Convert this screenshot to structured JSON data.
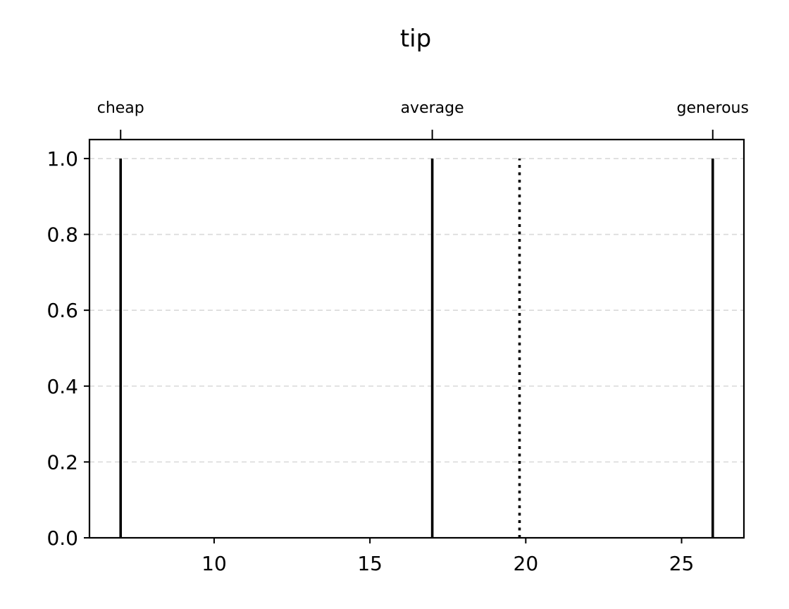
{
  "chart_data": {
    "type": "line",
    "title": "tip",
    "xlabel": "",
    "ylabel": "",
    "xlim": [
      6,
      27
    ],
    "ylim": [
      0,
      1.05
    ],
    "xticks": [
      10,
      15,
      20,
      25
    ],
    "yticks": [
      0.0,
      0.2,
      0.4,
      0.6,
      0.8,
      1.0
    ],
    "grid": "y, dashed",
    "series": [
      {
        "name": "cheap",
        "x": [
          7,
          7
        ],
        "y": [
          0,
          1
        ]
      },
      {
        "name": "average",
        "x": [
          17,
          17
        ],
        "y": [
          0,
          1
        ]
      },
      {
        "name": "generous",
        "x": [
          26,
          26
        ],
        "y": [
          0,
          1
        ]
      }
    ],
    "top_ticks": [
      {
        "label": "cheap",
        "x": 7
      },
      {
        "label": "average",
        "x": 17
      },
      {
        "label": "generous",
        "x": 26
      }
    ],
    "marker_line": {
      "x": 19.8,
      "y": [
        0,
        1
      ],
      "style": "dotted"
    }
  }
}
